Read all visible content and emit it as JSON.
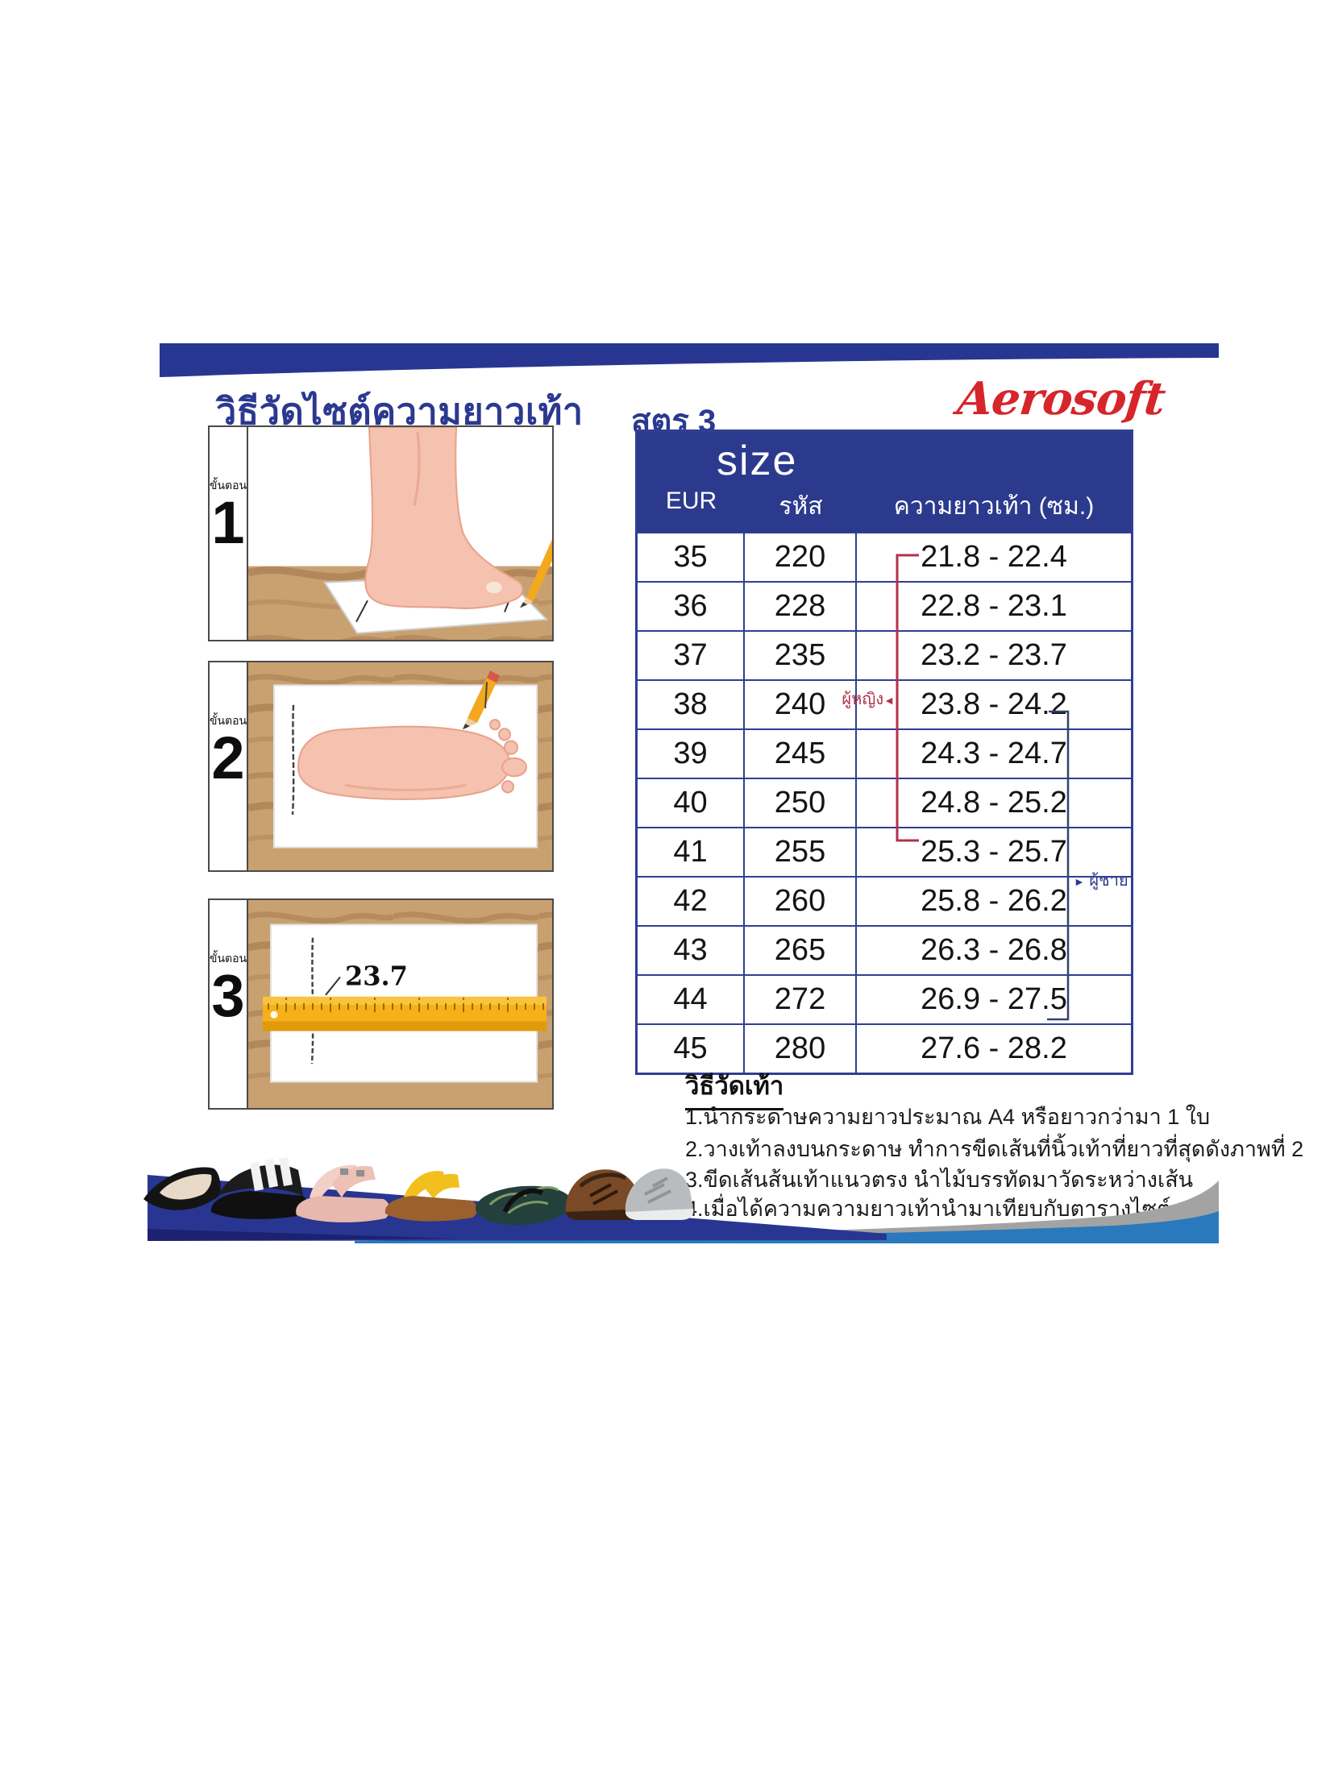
{
  "brand": {
    "logo_text": "Aerosoft"
  },
  "header": {
    "title": "วิธีวัดไซต์ความยาวเท้า",
    "formula_label": "สูตร 3"
  },
  "steps": {
    "step_word": "ขั้นตอน",
    "items": [
      {
        "number": "1"
      },
      {
        "number": "2"
      },
      {
        "number": "3"
      }
    ],
    "ruler_value": "23.7"
  },
  "size_table": {
    "size_label": "size",
    "columns": [
      "EUR",
      "รหัส",
      "ความยาวเท้า (ซม.)"
    ],
    "rows": [
      [
        "35",
        "220",
        "21.8 - 22.4"
      ],
      [
        "36",
        "228",
        "22.8 - 23.1"
      ],
      [
        "37",
        "235",
        "23.2 - 23.7"
      ],
      [
        "38",
        "240",
        "23.8 - 24.2"
      ],
      [
        "39",
        "245",
        "24.3 - 24.7"
      ],
      [
        "40",
        "250",
        "24.8 - 25.2"
      ],
      [
        "41",
        "255",
        "25.3 - 25.7"
      ],
      [
        "42",
        "260",
        "25.8 - 26.2"
      ],
      [
        "43",
        "265",
        "26.3 - 26.8"
      ],
      [
        "44",
        "272",
        "26.9 - 27.5"
      ],
      [
        "45",
        "280",
        "27.6 - 28.2"
      ]
    ],
    "annotations": {
      "women": "ผู้หญิง",
      "women_arrow": "◄",
      "men": "ผู้ชาย",
      "men_arrow": "►"
    }
  },
  "instructions": {
    "heading": "วิธีวัดเท้า",
    "lines": [
      "1.นำกระดาษความยาวประมาณ A4 หรือยาวกว่ามา 1 ใบ",
      "2.วางเท้าลงบนกระดาษ ทำการขีดเส้นที่นิ้วเท้าที่ยาวที่สุดดังภาพที่ 2",
      "3.ขีดเส้นส้นเท้าแนวตรง นำไม้บรรทัดมาวัดระหว่างเส้น",
      "4.เมื่อได้ความความยาวเท้านำมาเทียบกับตารางไซต์"
    ]
  },
  "colors": {
    "navy": "#2b3990",
    "table_border": "#303f93",
    "header_bg": "#2c3a8e",
    "brand_red": "#d6252b",
    "women_bracket": "#b3304a",
    "men_bracket": "#35406e",
    "wave_blue": "#2b79bd",
    "wave_gray": "#a3a3a3",
    "wood": "#c9a171",
    "ruler_yellow": "#f6b119"
  },
  "images": {
    "step1": "foot-side-view-on-paper-with-pencil",
    "step2": "foot-top-view-on-paper-with-pencil",
    "step3": "ruler-measuring-marks-on-paper",
    "shoes": "assorted-aerosoft-shoes-row"
  }
}
